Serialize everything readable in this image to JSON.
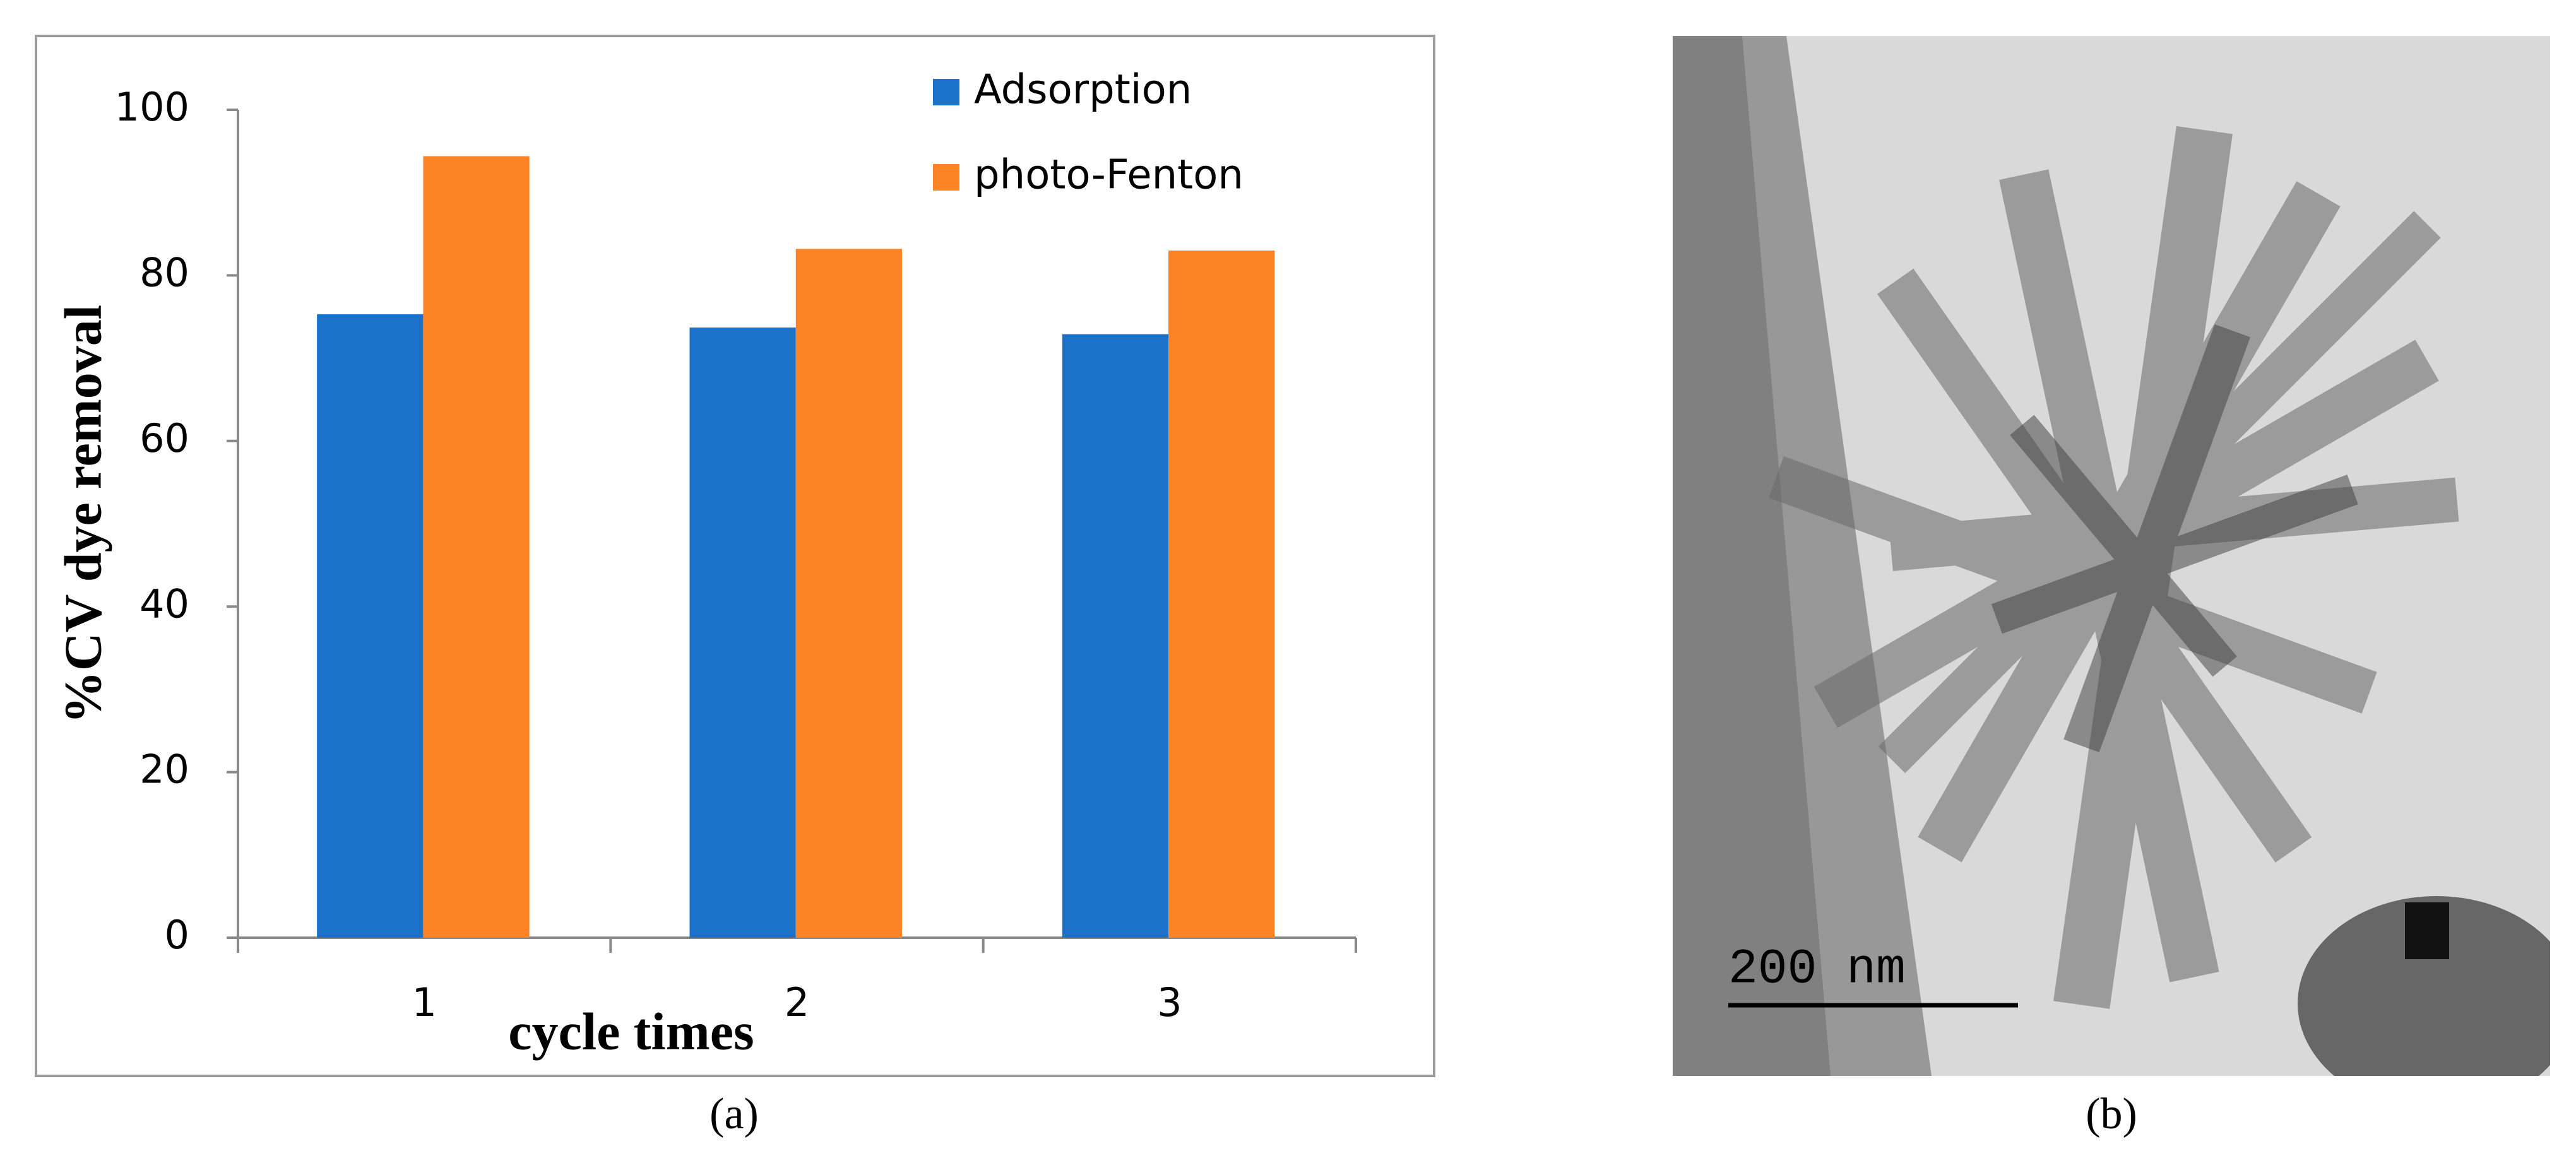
{
  "chart_data": {
    "type": "bar",
    "categories": [
      "1",
      "2",
      "3"
    ],
    "series": [
      {
        "name": "Adsorption",
        "color": "#1b72c8",
        "values": [
          75.3,
          73.7,
          72.9
        ]
      },
      {
        "name": "photo-Fenton",
        "color": "#fe8325",
        "values": [
          94.4,
          83.2,
          83.0
        ]
      }
    ],
    "ylim": [
      0,
      100
    ],
    "yticks": [
      0,
      20,
      40,
      60,
      80,
      100
    ],
    "x_label": "cycle times",
    "y_label": "%CV dye removal",
    "legend": "top-right"
  },
  "panel_labels": [
    "(a)",
    "(b)"
  ],
  "micrograph": {
    "scale_bar": "200 nm"
  }
}
